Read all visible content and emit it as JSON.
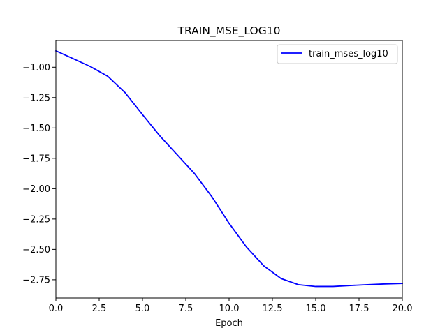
{
  "chart_data": {
    "type": "line",
    "title": "TRAIN_MSE_LOG10",
    "xlabel": "Epoch",
    "ylabel": "",
    "xlim": [
      0,
      20
    ],
    "ylim": [
      -2.9,
      -0.78
    ],
    "x_ticks": [
      0,
      2.5,
      5,
      7.5,
      10,
      12.5,
      15,
      17.5,
      20
    ],
    "x_tick_labels": [
      "0.0",
      "2.5",
      "5.0",
      "7.5",
      "10.0",
      "12.5",
      "15.0",
      "17.5",
      "20.0"
    ],
    "y_ticks": [
      -1.0,
      -1.25,
      -1.5,
      -1.75,
      -2.0,
      -2.25,
      -2.5,
      -2.75
    ],
    "y_tick_labels": [
      "−1.00",
      "−1.25",
      "−1.50",
      "−1.75",
      "−2.00",
      "−2.25",
      "−2.50",
      "−2.75"
    ],
    "grid": false,
    "legend_position": "top-right",
    "series": [
      {
        "name": "train_mses_log10",
        "color": "#0000ff",
        "x": [
          0,
          1,
          2,
          3,
          4,
          5,
          6,
          7,
          8,
          9,
          10,
          11,
          12,
          13,
          14,
          15,
          16,
          17,
          18,
          19,
          20
        ],
        "values": [
          -0.865,
          -0.93,
          -0.995,
          -1.075,
          -1.21,
          -1.39,
          -1.565,
          -1.72,
          -1.875,
          -2.065,
          -2.285,
          -2.48,
          -2.635,
          -2.74,
          -2.79,
          -2.805,
          -2.805,
          -2.797,
          -2.79,
          -2.784,
          -2.78
        ]
      }
    ]
  }
}
